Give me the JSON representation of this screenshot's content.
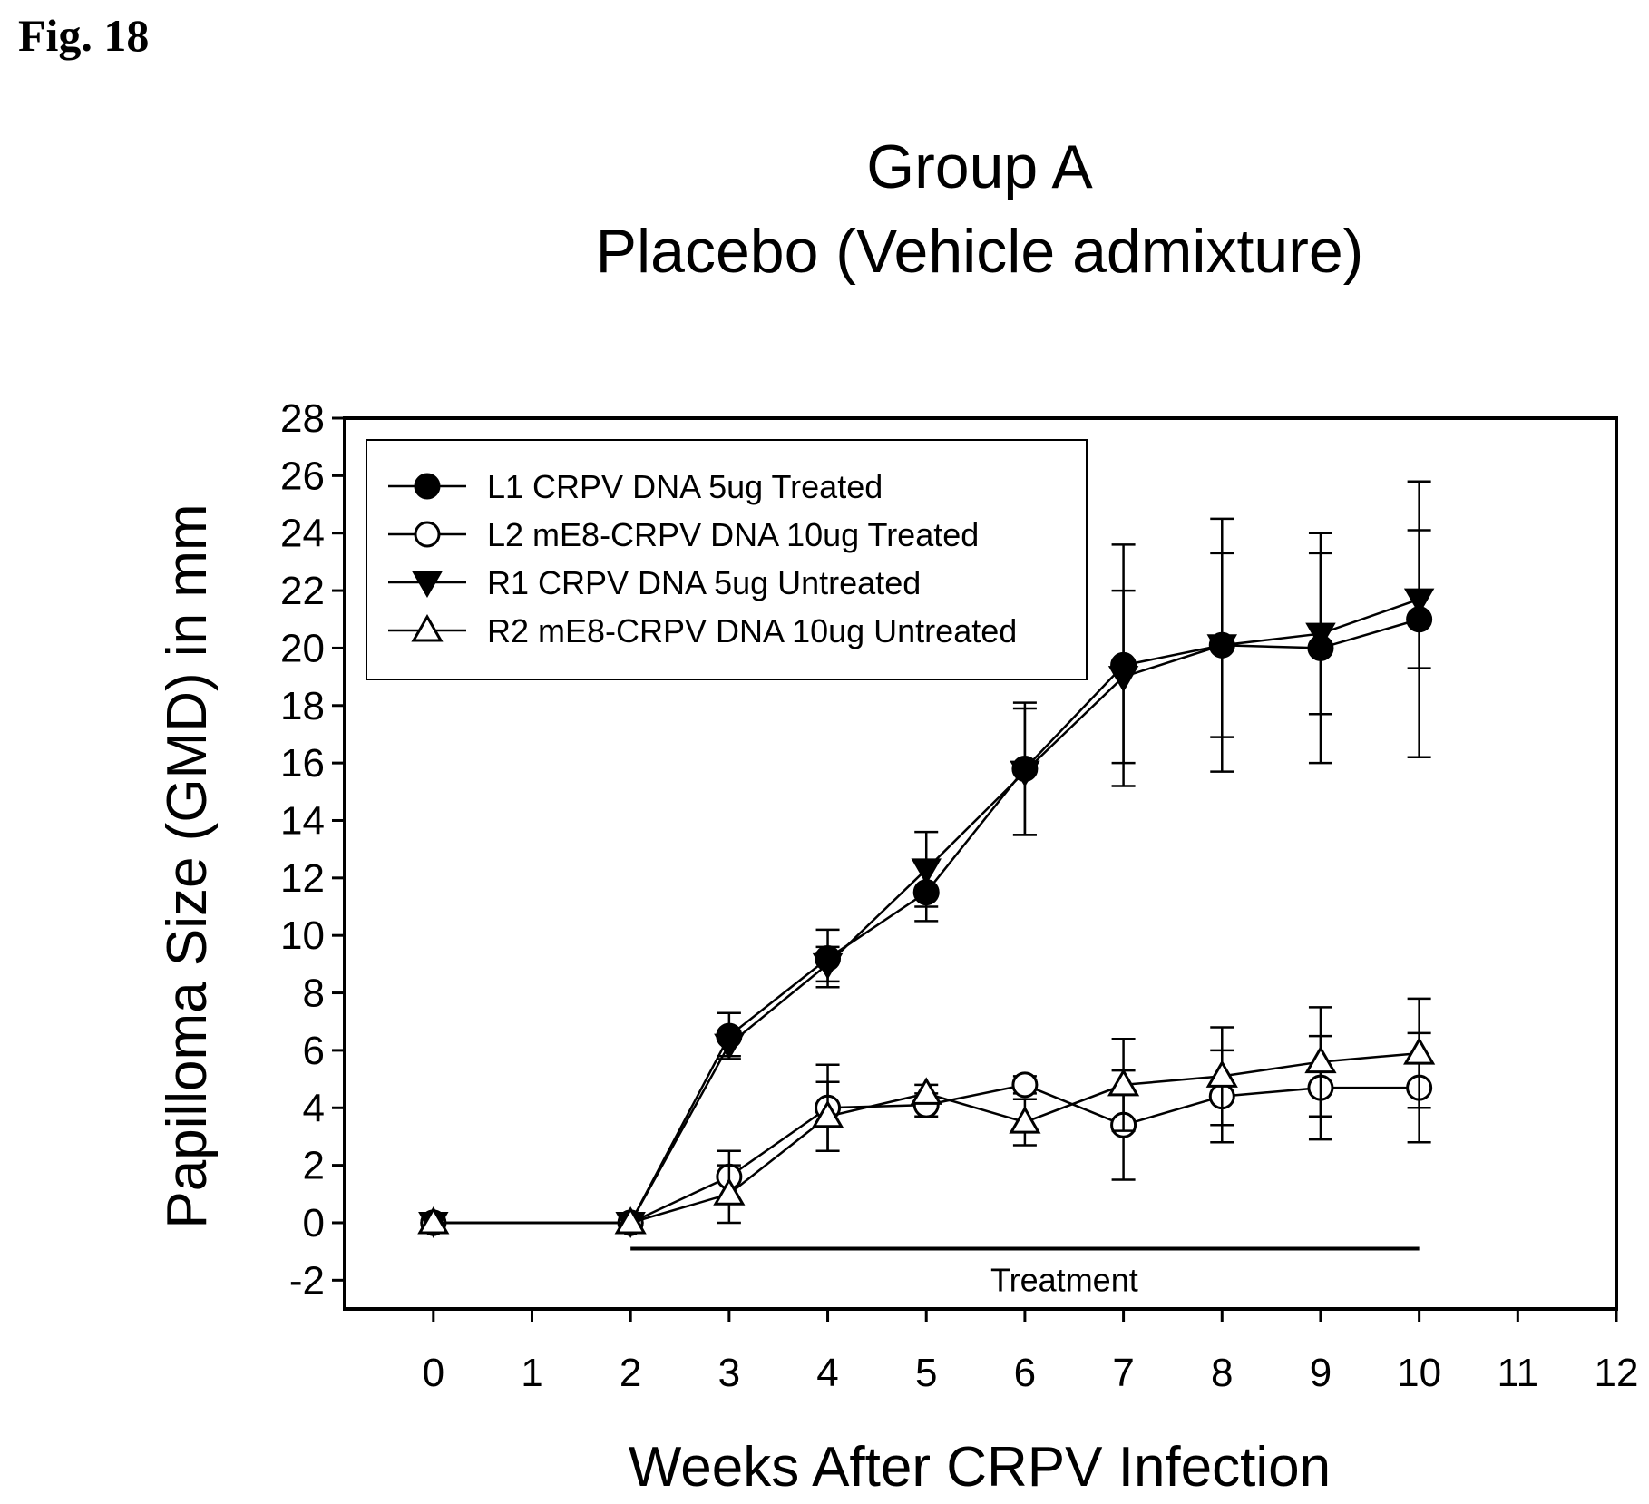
{
  "figure_label": "Fig. 18",
  "chart_data": {
    "type": "line",
    "title": "Group A",
    "subtitle": "Placebo (Vehicle admixture)",
    "xlabel": "Weeks After CRPV Infection",
    "ylabel": "Papilloma Size (GMD) in mm",
    "xlim": [
      -0.9,
      12
    ],
    "ylim": [
      -3,
      28
    ],
    "x_ticks": [
      0,
      1,
      2,
      3,
      4,
      5,
      6,
      7,
      8,
      9,
      10,
      11,
      12
    ],
    "y_ticks": [
      -2,
      0,
      2,
      4,
      6,
      8,
      10,
      12,
      14,
      16,
      18,
      20,
      22,
      24,
      26,
      28
    ],
    "grid": false,
    "legend_position": "top-left",
    "series": [
      {
        "name": "L1 CRPV DNA 5ug Treated",
        "marker": "filled-circle",
        "x": [
          0,
          2,
          3,
          4,
          5,
          6,
          7,
          8,
          9,
          10
        ],
        "y": [
          0,
          0,
          6.5,
          9.2,
          11.5,
          15.8,
          19.4,
          20.1,
          20.0,
          21.0
        ],
        "err": [
          0,
          0,
          0.8,
          1.0,
          1.0,
          2.3,
          4.2,
          4.4,
          4.0,
          4.8
        ]
      },
      {
        "name": "L2 mE8-CRPV DNA 10ug Treated",
        "marker": "open-circle",
        "x": [
          0,
          2,
          3,
          4,
          5,
          6,
          7,
          8,
          9,
          10
        ],
        "y": [
          0,
          0,
          1.6,
          4.0,
          4.1,
          4.8,
          3.4,
          4.4,
          4.7,
          4.7
        ],
        "err": [
          0,
          0,
          0.9,
          1.5,
          0.4,
          0.3,
          1.9,
          1.6,
          1.8,
          1.9
        ]
      },
      {
        "name": "R1 CRPV DNA 5ug Untreated",
        "marker": "filled-triangle-down",
        "x": [
          0,
          2,
          3,
          4,
          5,
          6,
          7,
          8,
          9,
          10
        ],
        "y": [
          0,
          0,
          6.2,
          9.0,
          12.3,
          15.7,
          19.0,
          20.1,
          20.5,
          21.7
        ],
        "err": [
          0,
          0,
          0.4,
          0.6,
          1.3,
          2.2,
          3.0,
          3.2,
          2.8,
          2.4
        ]
      },
      {
        "name": "R2 mE8-CRPV DNA 10ug Untreated",
        "marker": "open-triangle-up",
        "x": [
          0,
          2,
          3,
          4,
          5,
          6,
          7,
          8,
          9,
          10
        ],
        "y": [
          0,
          0,
          1.0,
          3.7,
          4.5,
          3.5,
          4.8,
          5.1,
          5.6,
          5.9
        ],
        "err": [
          0,
          0,
          1.0,
          1.2,
          0.3,
          0.8,
          1.6,
          1.7,
          1.9,
          1.9
        ]
      }
    ],
    "annotation": {
      "text": "Treatment",
      "x_start": 2,
      "x_end": 10,
      "y": -0.9,
      "text_x": 6.4,
      "text_y": -2.0
    }
  }
}
